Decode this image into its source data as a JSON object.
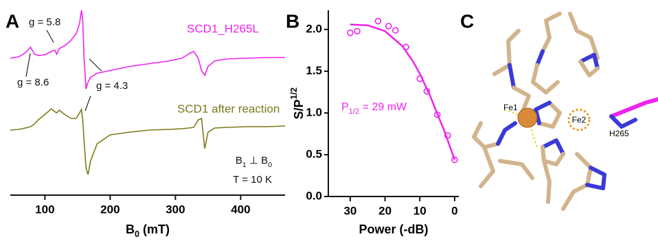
{
  "chart_data": [
    {
      "type": "line",
      "panel_label": "A",
      "x": [
        47,
        60,
        70,
        78,
        84,
        90,
        100,
        110,
        115,
        118,
        122,
        130,
        140,
        148,
        153,
        156,
        158,
        160,
        163,
        166,
        170,
        180,
        200,
        230,
        260,
        290,
        310,
        320,
        328,
        335,
        340,
        345,
        350,
        360,
        380,
        410,
        440,
        468
      ],
      "series": [
        {
          "name": "SCD1_H265L",
          "color": "#ee22ee",
          "values": [
            200,
            202,
            208,
            216,
            206,
            204,
            205,
            210,
            212,
            206,
            214,
            218,
            226,
            236,
            250,
            270,
            255,
            200,
            155,
            165,
            172,
            178,
            182,
            188,
            192,
            196,
            200,
            206,
            210,
            200,
            182,
            175,
            188,
            196,
            199,
            200,
            201,
            201
          ]
        },
        {
          "name": "SCD1 after reaction",
          "color": "#7a7a1a",
          "values": [
            95,
            96,
            98,
            100,
            104,
            110,
            118,
            126,
            122,
            120,
            124,
            118,
            112,
            112,
            120,
            125,
            110,
            80,
            40,
            30,
            50,
            75,
            88,
            92,
            95,
            96,
            97,
            98,
            99,
            110,
            112,
            68,
            92,
            98,
            99,
            100,
            100,
            101
          ]
        }
      ],
      "xlim": [
        47,
        468
      ],
      "xticks": [
        100,
        200,
        300,
        400
      ],
      "ylim": [
        0,
        285
      ],
      "xlabel": [
        "B",
        "0",
        " (mT)"
      ],
      "annotations": [
        [
          "g = 5.8"
        ],
        [
          "g = 8.6"
        ],
        [
          "g = 4.3"
        ],
        [
          "B",
          "1",
          " ⊥ B",
          "0"
        ],
        [
          "T = 10 K"
        ]
      ]
    },
    {
      "type": "scatter",
      "panel_label": "B",
      "x": [
        30,
        28,
        22,
        19,
        17,
        14,
        10,
        8,
        5,
        2,
        0
      ],
      "values": [
        1.96,
        1.98,
        2.1,
        2.04,
        1.99,
        1.79,
        1.41,
        1.26,
        0.98,
        0.73,
        0.44
      ],
      "color": "#ee22ee",
      "fit": {
        "x": [
          30,
          25,
          20,
          15,
          12,
          10,
          7,
          5,
          3,
          0
        ],
        "values": [
          2.06,
          2.05,
          1.98,
          1.8,
          1.62,
          1.47,
          1.2,
          0.99,
          0.79,
          0.44
        ]
      },
      "xlim": [
        36.3,
        -1.2
      ],
      "xticks": [
        30,
        20,
        10,
        0
      ],
      "ylim": [
        0,
        2.23
      ],
      "yticks": [
        {
          "value": 0,
          "label": "0.0"
        },
        {
          "value": 0.5,
          "label": "0.5"
        },
        {
          "value": 1,
          "label": "1.0"
        },
        {
          "value": 1.5,
          "label": "1.5"
        },
        {
          "value": 2,
          "label": "2.0"
        }
      ],
      "xlabel": [
        "Power (-dB)"
      ],
      "ylabel": [
        "S/P",
        "1/2"
      ],
      "annotations": [
        [
          "P",
          "1/2",
          " = 29 mW"
        ]
      ]
    }
  ],
  "panel_c": {
    "label": "C",
    "atoms": [
      "Fe1",
      "Fe2",
      "H265"
    ]
  }
}
